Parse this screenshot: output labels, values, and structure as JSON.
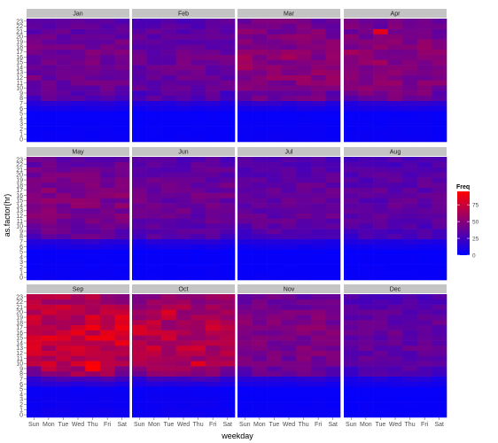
{
  "chart_data": {
    "type": "heatmap",
    "xlabel": "weekday",
    "ylabel": "as.factor(hr)",
    "x_categories": [
      "Sun",
      "Mon",
      "Tue",
      "Wed",
      "Thu",
      "Fri",
      "Sat"
    ],
    "y_categories": [
      "0",
      "1",
      "2",
      "3",
      "4",
      "5",
      "6",
      "7",
      "8",
      "9",
      "10",
      "11",
      "12",
      "13",
      "14",
      "15",
      "16",
      "17",
      "18",
      "19",
      "20",
      "21",
      "22",
      "23"
    ],
    "panels": [
      "Jan",
      "Feb",
      "Mar",
      "Apr",
      "May",
      "Jun",
      "Jul",
      "Aug",
      "Sep",
      "Oct",
      "Nov",
      "Dec"
    ],
    "panel_layout": "4 columns x 3 rows",
    "legend": {
      "title": "Freq",
      "ticks": [
        0,
        25,
        50,
        75
      ],
      "range": [
        0,
        95
      ],
      "low_color": "#0000ff",
      "high_color": "#ff0000",
      "position": "right"
    },
    "monthly_intensity": [
      {
        "month": "Jan",
        "level": 0.45
      },
      {
        "month": "Feb",
        "level": 0.42
      },
      {
        "month": "Mar",
        "level": 0.55
      },
      {
        "month": "Apr",
        "level": 0.55
      },
      {
        "month": "May",
        "level": 0.5
      },
      {
        "month": "Jun",
        "level": 0.42
      },
      {
        "month": "Jul",
        "level": 0.4
      },
      {
        "month": "Aug",
        "level": 0.37
      },
      {
        "month": "Sep",
        "level": 0.8
      },
      {
        "month": "Oct",
        "level": 0.72
      },
      {
        "month": "Nov",
        "level": 0.5
      },
      {
        "month": "Dec",
        "level": 0.4
      }
    ],
    "peak_cells": [
      {
        "month": "Apr",
        "weekday": "Tue",
        "hr": 21,
        "freq": 85
      },
      {
        "month": "Sep",
        "weekday": "Thu",
        "hr": 9,
        "freq": 95
      },
      {
        "month": "Sep",
        "weekday": "Thu",
        "hr": 10,
        "freq": 92
      },
      {
        "month": "Sep",
        "weekday": "Sun",
        "hr": 19,
        "freq": 80
      },
      {
        "month": "Oct",
        "weekday": "Tue",
        "hr": 20,
        "freq": 82
      },
      {
        "month": "Oct",
        "weekday": "Thu",
        "hr": 10,
        "freq": 85
      }
    ],
    "grid": false,
    "background_color": "#ebebeb",
    "strip_color": "#c4c4c4"
  }
}
